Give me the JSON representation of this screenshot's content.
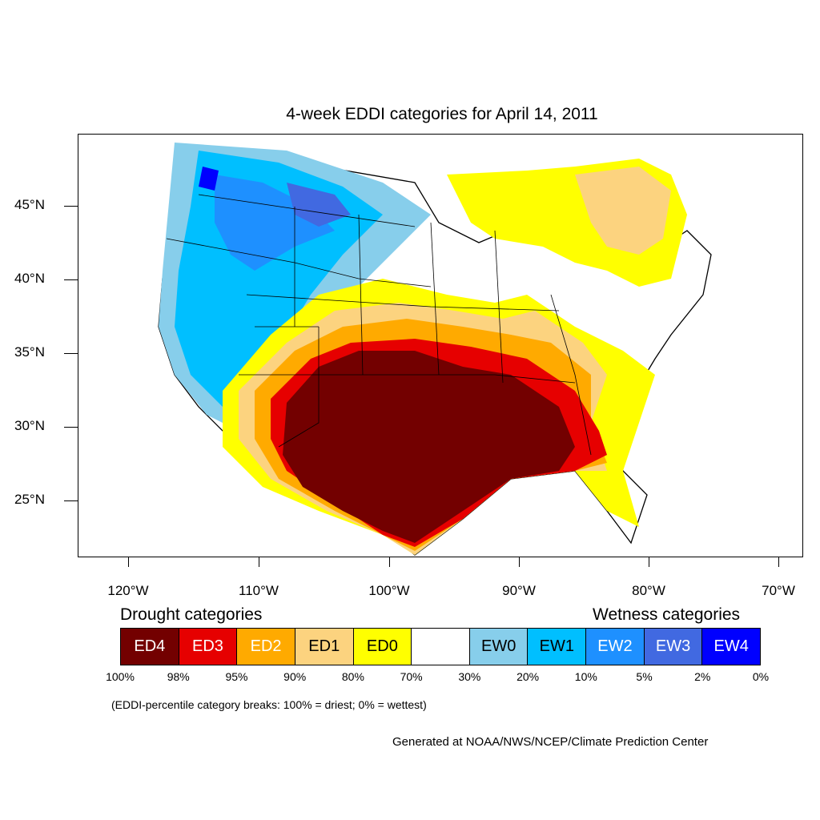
{
  "title": "4-week EDDI categories for April 14, 2011",
  "axes": {
    "lat_labels": [
      "45°N",
      "40°N",
      "35°N",
      "30°N",
      "25°N"
    ],
    "lon_labels": [
      "120°W",
      "110°W",
      "100°W",
      "90°W",
      "80°W",
      "70°W"
    ]
  },
  "legend": {
    "drought_heading": "Drought categories",
    "wetness_heading": "Wetness categories",
    "categories": [
      {
        "label": "ED4",
        "color": "#730000",
        "text_color": "#ffffff"
      },
      {
        "label": "ED3",
        "color": "#e60000",
        "text_color": "#ffffff"
      },
      {
        "label": "ED2",
        "color": "#ffaa00",
        "text_color": "#ffffff"
      },
      {
        "label": "ED1",
        "color": "#fcd37f",
        "text_color": "#000000"
      },
      {
        "label": "ED0",
        "color": "#ffff00",
        "text_color": "#000000"
      },
      {
        "label": "",
        "color": "#ffffff",
        "text_color": "#000000"
      },
      {
        "label": "EW0",
        "color": "#87ceeb",
        "text_color": "#000000"
      },
      {
        "label": "EW1",
        "color": "#00bfff",
        "text_color": "#000000"
      },
      {
        "label": "EW2",
        "color": "#1e90ff",
        "text_color": "#ffffff"
      },
      {
        "label": "EW3",
        "color": "#4169e1",
        "text_color": "#ffffff"
      },
      {
        "label": "EW4",
        "color": "#0000ff",
        "text_color": "#ffffff"
      }
    ],
    "breaks": [
      "100%",
      "98%",
      "95%",
      "90%",
      "80%",
      "70%",
      "30%",
      "20%",
      "10%",
      "5%",
      "2%",
      "0%"
    ]
  },
  "note": "(EDDI-percentile category breaks: 100% = driest; 0% = wettest)",
  "credit": "Generated at NOAA/NWS/NCEP/Climate Prediction Center"
}
